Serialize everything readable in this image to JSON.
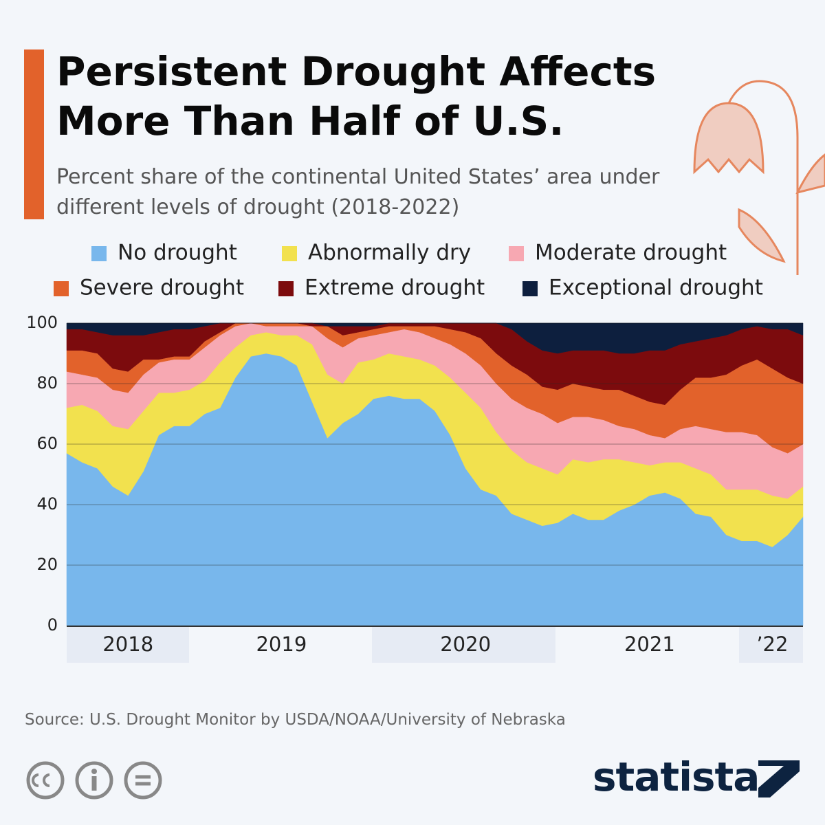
{
  "chart_data": {
    "type": "stacked-area",
    "title": "Persistent Drought Affects More Than Half of U.S.",
    "subtitle": "Percent share of the continental United States’ area under different levels of drought (2018-2022)",
    "source": "Source: U.S. Drought Monitor by USDA/NOAA/University of Nebraska",
    "brand": "statista",
    "categories": [
      null,
      null,
      null,
      null,
      "2018",
      null,
      null,
      null,
      null,
      null,
      null,
      null,
      null,
      null,
      "2019",
      null,
      null,
      null,
      null,
      null,
      null,
      null,
      null,
      null,
      null,
      null,
      "2020",
      null,
      null,
      null,
      null,
      null,
      null,
      null,
      null,
      null,
      null,
      null,
      "2021",
      null,
      null,
      null,
      null,
      null,
      null,
      null,
      "’22",
      null,
      null
    ],
    "ylim": [
      0,
      100
    ],
    "yticks": [
      0,
      20,
      40,
      60,
      80,
      100
    ],
    "grid": true,
    "series": [
      {
        "name": "No drought",
        "color": "#78b7ec",
        "values": [
          57,
          54,
          52,
          46,
          43,
          51,
          63,
          66,
          66,
          70,
          72,
          82,
          89,
          90,
          89,
          86,
          74,
          62,
          67,
          70,
          75,
          76,
          75,
          75,
          71,
          63,
          52,
          45,
          43,
          37,
          35,
          33,
          34,
          37,
          35,
          35,
          38,
          40,
          43,
          44,
          42,
          37,
          36,
          30,
          28,
          28,
          26,
          30,
          36
        ]
      },
      {
        "name": "Abnormally dry",
        "color": "#f2e14e",
        "values": [
          15,
          19,
          19,
          20,
          22,
          20,
          14,
          11,
          12,
          11,
          15,
          10,
          7,
          7,
          7,
          10,
          19,
          21,
          13,
          17,
          13,
          14,
          14,
          13,
          15,
          19,
          25,
          27,
          21,
          21,
          19,
          19,
          16,
          18,
          19,
          20,
          17,
          14,
          10,
          10,
          12,
          15,
          14,
          15,
          17,
          17,
          17,
          12,
          10
        ]
      },
      {
        "name": "Moderate drought",
        "color": "#f7a8b2",
        "values": [
          12,
          10,
          11,
          12,
          12,
          12,
          10,
          11,
          10,
          11,
          9,
          7,
          4,
          2,
          3,
          3,
          6,
          12,
          12,
          8,
          8,
          7,
          9,
          9,
          9,
          11,
          13,
          14,
          16,
          17,
          18,
          18,
          17,
          14,
          15,
          13,
          11,
          11,
          10,
          8,
          11,
          14,
          15,
          19,
          19,
          18,
          16,
          15,
          14
        ]
      },
      {
        "name": "Severe drought",
        "color": "#e2622b",
        "values": [
          7,
          8,
          8,
          7,
          7,
          5,
          1,
          1,
          1,
          2,
          1,
          1,
          0,
          1,
          1,
          1,
          0,
          4,
          4,
          2,
          2,
          2,
          1,
          2,
          4,
          5,
          7,
          9,
          10,
          11,
          11,
          9,
          11,
          11,
          10,
          10,
          12,
          11,
          11,
          11,
          13,
          16,
          17,
          19,
          22,
          25,
          26,
          25,
          20
        ]
      },
      {
        "name": "Extreme drought",
        "color": "#7c0b0d",
        "values": [
          7,
          7,
          7,
          11,
          12,
          8,
          9,
          9,
          9,
          5,
          3,
          0,
          0,
          0,
          0,
          0,
          1,
          0,
          3,
          2,
          1,
          1,
          1,
          1,
          1,
          2,
          3,
          5,
          10,
          12,
          11,
          12,
          12,
          11,
          12,
          13,
          12,
          14,
          17,
          18,
          15,
          12,
          13,
          13,
          12,
          11,
          13,
          16,
          16
        ]
      },
      {
        "name": "Exceptional drought",
        "color": "#0d1f3e",
        "values": [
          2,
          2,
          3,
          4,
          4,
          4,
          3,
          2,
          2,
          1,
          0,
          0,
          0,
          0,
          0,
          0,
          0,
          1,
          1,
          1,
          1,
          0,
          0,
          0,
          0,
          0,
          0,
          0,
          0,
          2,
          6,
          9,
          10,
          9,
          9,
          9,
          10,
          10,
          9,
          9,
          7,
          6,
          5,
          4,
          2,
          1,
          2,
          2,
          4
        ]
      }
    ]
  }
}
